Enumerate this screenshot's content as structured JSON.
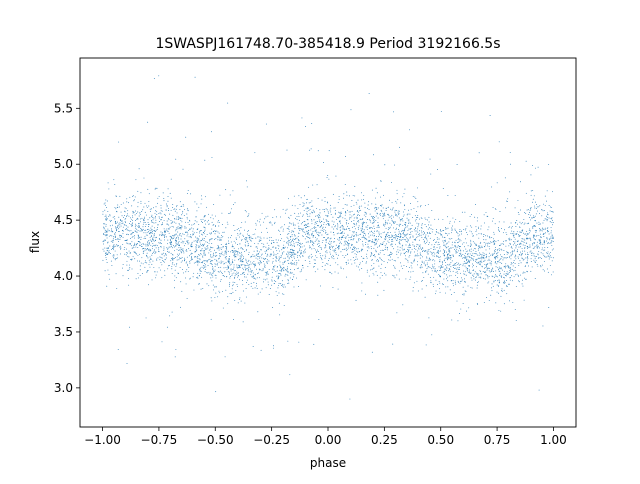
{
  "chart_data": {
    "type": "scatter",
    "title": "1SWASPJ161748.70-385418.9 Period 3192166.5s",
    "xlabel": "phase",
    "ylabel": "flux",
    "xlim": [
      -1.1,
      1.1
    ],
    "ylim": [
      2.65,
      5.95
    ],
    "x_ticks": [
      -1.0,
      -0.75,
      -0.5,
      -0.25,
      0.0,
      0.25,
      0.5,
      0.75,
      1.0
    ],
    "x_tick_labels": [
      "−1.00",
      "−0.75",
      "−0.50",
      "−0.25",
      "0.00",
      "0.25",
      "0.50",
      "0.75",
      "1.00"
    ],
    "y_ticks": [
      3.0,
      3.5,
      4.0,
      4.5,
      5.0,
      5.5
    ],
    "y_tick_labels": [
      "3.0",
      "3.5",
      "4.0",
      "4.5",
      "5.0",
      "5.5"
    ],
    "grid": false,
    "legend": "none",
    "point_color": "#1f77b4",
    "x_range": [
      -1.0,
      1.0
    ],
    "y_range": [
      2.8,
      5.85
    ],
    "point_count": 5000,
    "profile": {
      "phase": [
        0.0,
        0.1,
        0.2,
        0.3,
        0.4,
        0.45,
        0.5,
        0.6,
        0.7,
        0.8,
        0.9,
        1.0
      ],
      "median_flux": [
        4.38,
        4.38,
        4.35,
        4.35,
        4.3,
        4.25,
        4.17,
        4.15,
        4.18,
        4.15,
        4.38,
        4.38
      ],
      "scatter_sigma": 0.17
    }
  }
}
